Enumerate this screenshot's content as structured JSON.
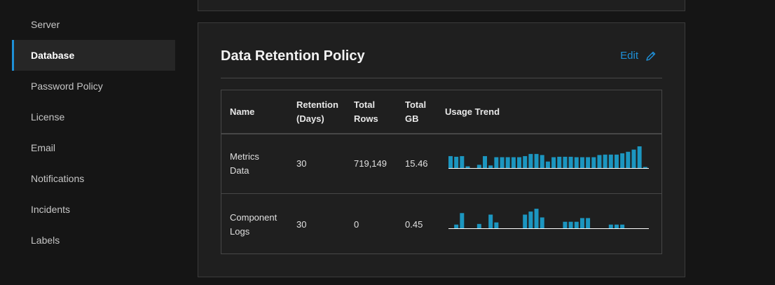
{
  "sidebar": {
    "items": [
      {
        "label": "Server",
        "active": false
      },
      {
        "label": "Database",
        "active": true
      },
      {
        "label": "Password Policy",
        "active": false
      },
      {
        "label": "License",
        "active": false
      },
      {
        "label": "Email",
        "active": false
      },
      {
        "label": "Notifications",
        "active": false
      },
      {
        "label": "Incidents",
        "active": false
      },
      {
        "label": "Labels",
        "active": false
      }
    ]
  },
  "card": {
    "title": "Data Retention Policy",
    "edit_label": "Edit"
  },
  "table": {
    "headers": {
      "name": "Name",
      "retention_line1": "Retention",
      "retention_line2": "(Days)",
      "rows_line1": "Total",
      "rows_line2": "Rows",
      "gb_line1": "Total",
      "gb_line2": "GB",
      "trend": "Usage Trend"
    },
    "rows": [
      {
        "name_line1": "Metrics",
        "name_line2": "Data",
        "retention": "30",
        "total_rows": "719,149",
        "total_gb": "15.46",
        "trend": [
          0.55,
          0.52,
          0.55,
          0.08,
          0,
          0.15,
          0.55,
          0.12,
          0.5,
          0.5,
          0.5,
          0.5,
          0.5,
          0.55,
          0.65,
          0.65,
          0.6,
          0.3,
          0.5,
          0.52,
          0.52,
          0.52,
          0.5,
          0.5,
          0.5,
          0.5,
          0.6,
          0.62,
          0.62,
          0.62,
          0.68,
          0.75,
          0.85,
          1.0,
          0.05
        ]
      },
      {
        "name_line1": "Component",
        "name_line2": "Logs",
        "retention": "30",
        "total_rows": "0",
        "total_gb": "0.45",
        "trend": [
          0,
          0.17,
          0.7,
          0,
          0,
          0.2,
          0,
          0.63,
          0.27,
          0,
          0,
          0,
          0,
          0.63,
          0.77,
          0.9,
          0.5,
          0,
          0,
          0,
          0.3,
          0.3,
          0.3,
          0.47,
          0.47,
          0,
          0,
          0,
          0.17,
          0.17,
          0.17,
          0,
          0,
          0,
          0
        ]
      }
    ]
  },
  "colors": {
    "accent": "#1e90d8",
    "spark_bar": "#1c96c0",
    "spark_baseline": "#ffffff"
  }
}
